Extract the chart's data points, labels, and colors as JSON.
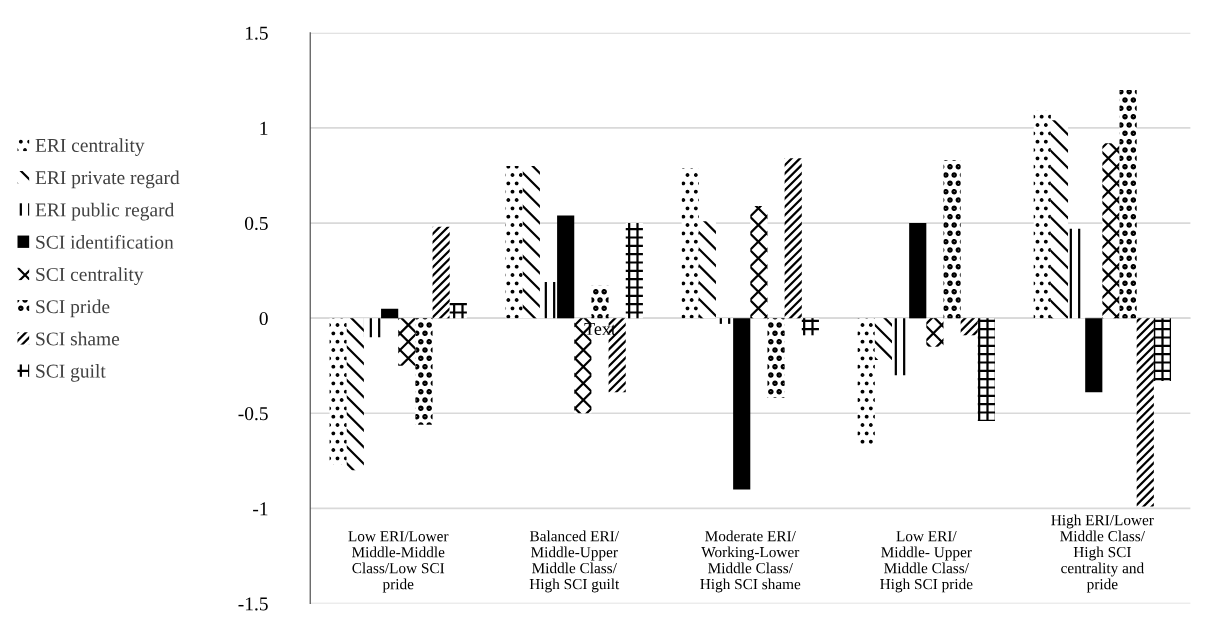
{
  "chart_data": {
    "type": "bar",
    "categories": [
      "Low ERI/Lower\nMiddle-Middle\nClass/Low SCI\npride",
      "Balanced ERI/\nMiddle-Upper\nMiddle Class/\nHigh SCI guilt",
      "Moderate ERI/\nWorking-Lower\nMiddle Class/\nHigh SCI shame",
      "Low ERI/\nMiddle- Upper\nMiddle Class/\nHigh SCI pride",
      "High ERI/Lower\nMiddle Class/\nHigh SCI\ncentrality and\npride"
    ],
    "series": [
      {
        "name": "ERI centrality",
        "color": "#000000",
        "values": [
          -0.77,
          0.8,
          0.79,
          -0.67,
          1.09
        ]
      },
      {
        "name": "ERI private regard",
        "color": "#000000",
        "values": [
          -0.8,
          0.8,
          0.51,
          -0.22,
          1.04
        ]
      },
      {
        "name": "ERI public regard",
        "color": "#000000",
        "values": [
          -0.1,
          0.19,
          -0.03,
          -0.3,
          0.47
        ]
      },
      {
        "name": "SCI identification",
        "color": "#000000",
        "values": [
          0.05,
          0.54,
          -0.9,
          0.5,
          -0.39
        ]
      },
      {
        "name": "SCI centrality",
        "color": "#000000",
        "values": [
          -0.25,
          -0.5,
          0.59,
          -0.15,
          0.92
        ]
      },
      {
        "name": "SCI pride",
        "color": "#000000",
        "values": [
          -0.56,
          0.17,
          -0.42,
          0.83,
          1.2
        ]
      },
      {
        "name": "SCI shame",
        "color": "#000000",
        "values": [
          0.48,
          -0.39,
          0.84,
          -0.09,
          -0.99
        ]
      },
      {
        "name": "SCI guilt",
        "color": "#000000",
        "values": [
          0.08,
          0.5,
          -0.09,
          -0.54,
          -0.33
        ]
      }
    ],
    "ylim": [
      -1.5,
      1.5
    ],
    "yticks": [
      -1.5,
      -1,
      -0.5,
      0,
      0.5,
      1,
      1.5
    ],
    "grid": "y",
    "legend": "left",
    "annotations": [
      {
        "text": "Text",
        "x": "Balanced ERI/\nMiddle-Upper\nMiddle Class/\nHigh SCI guilt",
        "y": 0
      }
    ]
  }
}
